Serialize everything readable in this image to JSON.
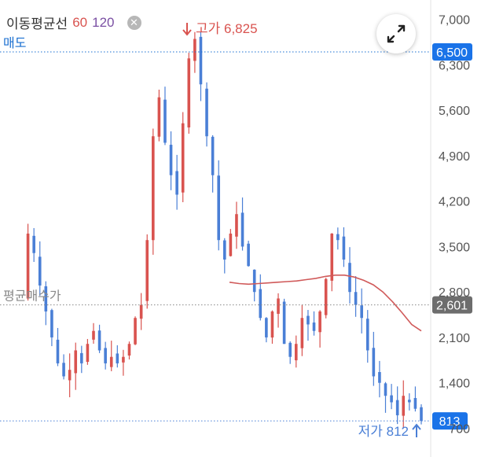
{
  "legend": {
    "title": "이동평균선",
    "ma60": "60",
    "ma120": "120",
    "close_icon": "close-icon"
  },
  "expand_icon": "expand-icon",
  "colors": {
    "up": "#d9534f",
    "down": "#4a7fd6",
    "ma120": "#d05a5a",
    "sell": "#1a6fd1",
    "avg": "#888888",
    "badge_blue": "#1a73e8",
    "badge_gray": "#6d6d6d"
  },
  "chart_data": {
    "type": "candlestick",
    "y_ticks": [
      "7,000",
      "6,300",
      "5,600",
      "4,900",
      "4,200",
      "3,500",
      "2,800",
      "2,100",
      "1,400",
      "700"
    ],
    "y_tick_values": [
      7000,
      6300,
      5600,
      4900,
      4200,
      3500,
      2800,
      2100,
      1400,
      700
    ],
    "ylim": [
      560,
      7300
    ],
    "high_label": "고가 6,825",
    "low_label": "저가 812",
    "sell_line": {
      "label": "매도",
      "value": 6500,
      "badge": "6,500"
    },
    "avg_line": {
      "label": "평균매수가",
      "value": 2601,
      "badge": "2,601"
    },
    "current": {
      "value": 813,
      "badge": "813"
    },
    "ma_line": [
      2950,
      2930,
      2920,
      2930,
      2940,
      2950,
      2960,
      2970,
      2990,
      3010,
      3040,
      3060,
      3060,
      3030,
      2980,
      2910,
      2800,
      2650,
      2480,
      2300,
      2200
    ],
    "close_series": [
      2700,
      3700,
      3400,
      2900,
      2500,
      2100,
      1700,
      1500,
      1600,
      1900,
      1700,
      2000,
      2200,
      1900,
      1700,
      1800,
      1700,
      1800,
      2000,
      2400,
      2600,
      3600,
      5200,
      5800,
      5100,
      4600,
      4300,
      5400,
      6400,
      6700,
      6000,
      5200,
      4600,
      3600,
      3300,
      3700,
      4000,
      3500,
      3200,
      2800,
      2400,
      2100,
      2500,
      2700,
      2000,
      1800,
      2000,
      2400,
      2300,
      2200,
      2500,
      3000,
      3700,
      3600,
      3300,
      2800,
      2600,
      2400,
      1900,
      1500,
      1400,
      1200,
      1100,
      900,
      1200,
      1100,
      1000,
      813
    ]
  }
}
